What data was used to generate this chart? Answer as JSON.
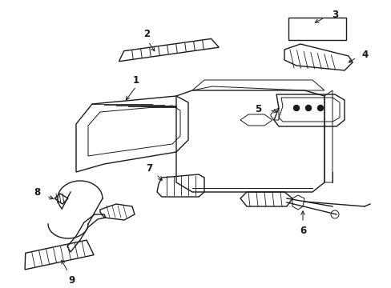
{
  "bg_color": "#ffffff",
  "line_color": "#1a1a1a",
  "fig_width": 4.89,
  "fig_height": 3.6,
  "dpi": 100,
  "label_fontsize": 8.5
}
